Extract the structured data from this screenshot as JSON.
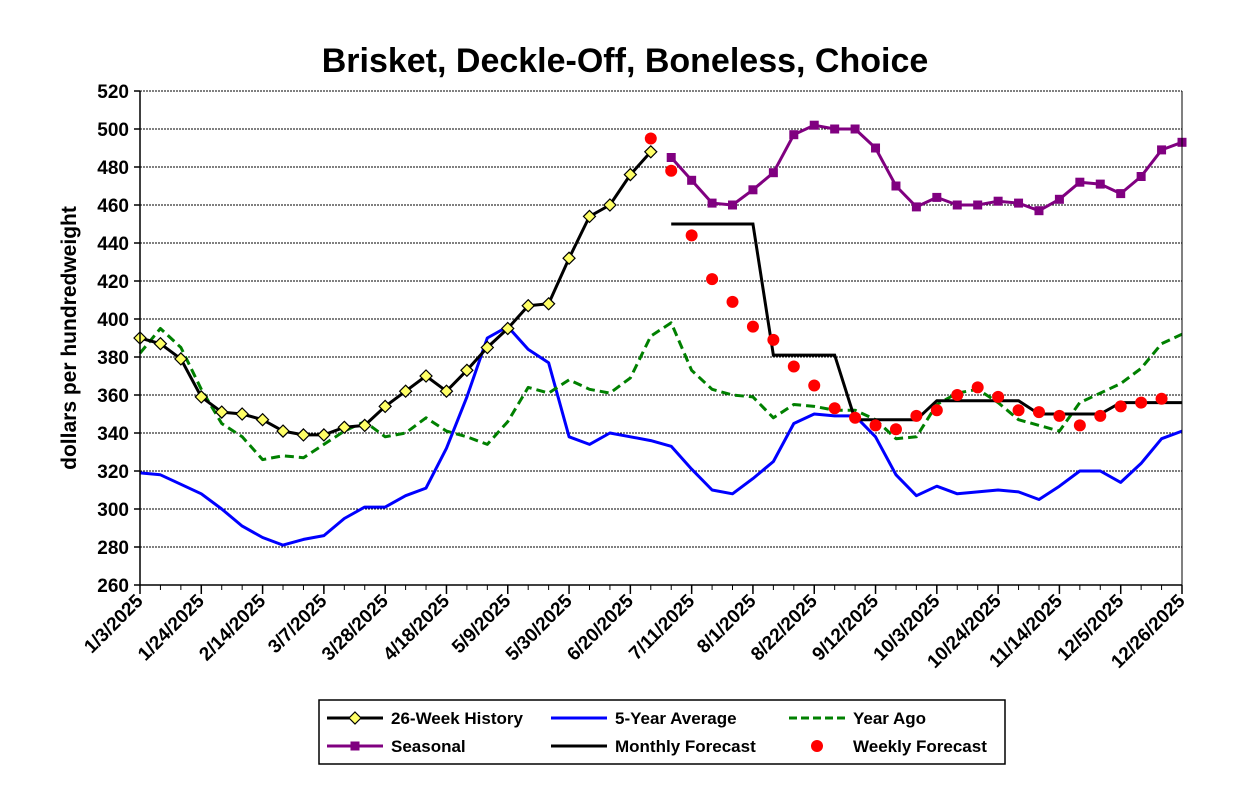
{
  "chart_data": {
    "type": "line",
    "title": "Brisket, Deckle-Off, Boneless, Choice",
    "xlabel": "",
    "ylabel": "dollars per hundredweight",
    "ylim": [
      260,
      520
    ],
    "ytick_step": 20,
    "x_start_label": "1/3/2025",
    "x_count": 52,
    "x_tick_labels": [
      "1/3/2025",
      "1/24/2025",
      "2/14/2025",
      "3/7/2025",
      "3/28/2025",
      "4/18/2025",
      "5/9/2025",
      "5/30/2025",
      "6/20/2025",
      "7/11/2025",
      "8/1/2025",
      "8/22/2025",
      "9/12/2025",
      "10/3/2025",
      "10/24/2025",
      "11/14/2025",
      "12/5/2025",
      "12/26/2025"
    ],
    "grid": "horizontal",
    "legend_position": "bottom",
    "series": [
      {
        "name": "26-Week History",
        "style": "line-diamond",
        "color": "#000000",
        "marker_color": "#ffff66",
        "start_index": 0,
        "values": [
          390,
          387,
          379,
          359,
          351,
          350,
          347,
          341,
          339,
          339,
          343,
          344,
          354,
          362,
          370,
          362,
          373,
          385,
          395,
          407,
          408,
          432,
          454,
          460,
          476,
          488
        ]
      },
      {
        "name": "5-Year Average",
        "style": "line",
        "color": "#0000ff",
        "start_index": 0,
        "values": [
          319,
          318,
          313,
          308,
          300,
          291,
          285,
          281,
          284,
          286,
          295,
          301,
          301,
          307,
          311,
          332,
          359,
          390,
          396,
          384,
          377,
          338,
          334,
          340,
          338,
          336,
          333,
          321,
          310,
          308,
          316,
          325,
          345,
          350,
          349,
          349,
          338,
          318,
          307,
          312,
          308,
          309,
          310,
          309,
          305,
          312,
          320,
          320,
          314,
          324,
          337,
          341
        ]
      },
      {
        "name": "Year Ago",
        "style": "dashed",
        "color": "#008000",
        "start_index": 0,
        "values": [
          382,
          395,
          385,
          363,
          345,
          338,
          326,
          328,
          327,
          334,
          341,
          346,
          338,
          340,
          348,
          341,
          338,
          334,
          346,
          364,
          361,
          368,
          363,
          361,
          369,
          391,
          398,
          373,
          363,
          360,
          359,
          348,
          355,
          354,
          352,
          352,
          347,
          337,
          338,
          355,
          361,
          363,
          356,
          347,
          344,
          341,
          356,
          361,
          366,
          374,
          387,
          392
        ]
      },
      {
        "name": "Seasonal",
        "style": "line-square",
        "color": "#800080",
        "start_index": 26,
        "values": [
          485,
          473,
          461,
          460,
          468,
          477,
          497,
          502,
          500,
          500,
          490,
          470,
          459,
          464,
          460,
          460,
          462,
          461,
          457,
          463,
          472,
          471,
          466,
          475,
          489,
          493
        ]
      },
      {
        "name": "Monthly Forecast",
        "style": "step",
        "color": "#000000",
        "segments": [
          {
            "start_index": 26,
            "end_index": 30,
            "value": 450
          },
          {
            "start_index": 31,
            "end_index": 34,
            "value": 381
          },
          {
            "start_index": 35,
            "end_index": 38,
            "value": 347
          },
          {
            "start_index": 39,
            "end_index": 43,
            "value": 357
          },
          {
            "start_index": 44,
            "end_index": 47,
            "value": 350
          },
          {
            "start_index": 48,
            "end_index": 51,
            "value": 356
          }
        ]
      },
      {
        "name": "Weekly Forecast",
        "style": "dots",
        "color": "#ff0000",
        "start_index": 25,
        "values": [
          495,
          478,
          444,
          421,
          409,
          396,
          389,
          375,
          365,
          353,
          348,
          344,
          342,
          349,
          352,
          360,
          364,
          359,
          352,
          351,
          349,
          344,
          349,
          354,
          356,
          358
        ]
      }
    ]
  }
}
